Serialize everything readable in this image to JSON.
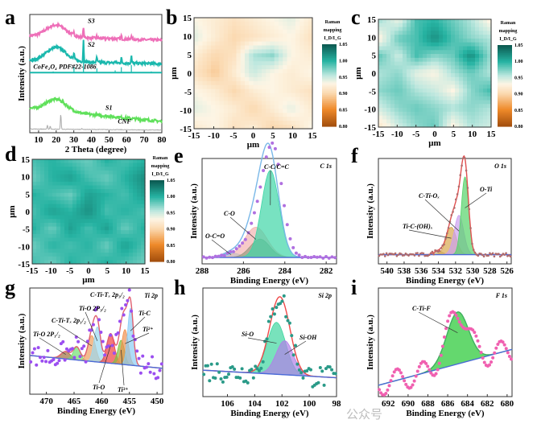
{
  "colorscale": {
    "stops": [
      [
        0.8,
        "#a5500e"
      ],
      [
        0.85,
        "#ef8a2a"
      ],
      [
        0.9,
        "#fbd9b0"
      ],
      [
        0.93,
        "#fdf5e4"
      ],
      [
        0.955,
        "#bfe8df"
      ],
      [
        1.0,
        "#26b3a2"
      ],
      [
        1.05,
        "#0c5b52"
      ]
    ],
    "title": [
      "Raman",
      "mapping",
      "I_D/I_G"
    ],
    "ticks": [
      "1.05",
      "1.00",
      "0.95",
      "0.90",
      "0.85",
      "0.80"
    ]
  },
  "watermark": "公众号",
  "chart_data": [
    {
      "panel": "a",
      "type": "line",
      "xlabel": "2 Theta (degree)",
      "ylabel": "Intensity (a.u.)",
      "xlim": [
        5,
        80
      ],
      "ylim": [
        0,
        11
      ],
      "xticks": [
        "10",
        "20",
        "30",
        "40",
        "50",
        "60",
        "70",
        "80"
      ],
      "series": [
        {
          "name": "S3",
          "color": "#ee6fb8",
          "baseline_end": 8.6,
          "tail": 0.4,
          "hump": 1.1,
          "peaks": [
            [
              30.1,
              0.3
            ],
            [
              35.5,
              1.0
            ],
            [
              43.1,
              0.2
            ],
            [
              57.0,
              0.3
            ],
            [
              62.7,
              0.4
            ]
          ]
        },
        {
          "name": "S2",
          "color": "#1ab8ad",
          "baseline_end": 6.4,
          "tail": 0.3,
          "hump": 1.3,
          "peaks": [
            [
              30.1,
              0.6
            ],
            [
              35.5,
              2.0
            ],
            [
              43.1,
              0.5
            ],
            [
              53.5,
              0.2
            ],
            [
              57.0,
              0.5
            ],
            [
              62.7,
              0.7
            ],
            [
              74.0,
              0.1
            ]
          ]
        },
        {
          "name": "CoFe₂O₄ PDF#22-1086",
          "color": "#1ab8ad",
          "reference": true,
          "baseline_end": 5.6,
          "peaks": [
            [
              18.3,
              0.1
            ],
            [
              30.1,
              0.5
            ],
            [
              35.5,
              1.1
            ],
            [
              43.1,
              0.4
            ],
            [
              53.5,
              0.2
            ],
            [
              57.0,
              0.5
            ],
            [
              62.7,
              0.7
            ],
            [
              74.0,
              0.1
            ]
          ]
        },
        {
          "name": "S1",
          "color": "#5fe05a",
          "baseline_end": 1.05,
          "tail": 1.2,
          "hump": 1.1,
          "peaks": []
        },
        {
          "name": "CNF",
          "color": "#aaaaaa",
          "baseline_end": 0.25,
          "tail": 0.1,
          "hump": 0.0,
          "peaks": [
            [
              15.0,
              0.35
            ],
            [
              16.6,
              0.3
            ],
            [
              22.6,
              1.5
            ],
            [
              34.5,
              0.1
            ]
          ]
        }
      ]
    },
    {
      "panel": "b",
      "type": "heatmap",
      "xlabel": "μm",
      "ylabel": "μm",
      "xlim": [
        -15,
        15
      ],
      "ylim": [
        -15,
        15
      ],
      "xticks": [
        "-15",
        "-10",
        "-5",
        "0",
        "5",
        "10",
        "15"
      ],
      "yticks": [
        "15",
        "10",
        "5",
        "0",
        "-5",
        "-10",
        "-15"
      ],
      "values": [
        [
          0.93,
          0.92,
          0.91,
          0.92,
          0.93,
          0.94,
          0.92
        ],
        [
          0.94,
          0.92,
          0.9,
          0.91,
          0.92,
          0.93,
          0.91
        ],
        [
          0.92,
          0.9,
          0.91,
          0.96,
          0.97,
          0.93,
          0.92
        ],
        [
          0.91,
          0.89,
          0.92,
          0.95,
          0.93,
          0.92,
          0.93
        ],
        [
          0.93,
          0.92,
          0.9,
          0.92,
          0.93,
          0.92,
          0.91
        ],
        [
          0.94,
          0.93,
          0.92,
          0.9,
          0.92,
          0.94,
          0.92
        ],
        [
          0.92,
          0.93,
          0.91,
          0.92,
          0.9,
          0.91,
          0.93
        ]
      ]
    },
    {
      "panel": "c",
      "type": "heatmap",
      "xlabel": "μm",
      "ylabel": "μm",
      "xlim": [
        -15,
        15
      ],
      "ylim": [
        -15,
        15
      ],
      "xticks": [
        "-15",
        "-10",
        "-5",
        "0",
        "5",
        "10",
        "15"
      ],
      "yticks": [
        "15",
        "10",
        "5",
        "0",
        "-5",
        "-10",
        "-15"
      ],
      "values": [
        [
          0.96,
          0.94,
          0.99,
          1.0,
          0.98,
          0.96,
          0.93
        ],
        [
          0.93,
          0.98,
          0.99,
          1.02,
          0.99,
          0.97,
          0.96
        ],
        [
          0.98,
          0.95,
          0.99,
          0.97,
          0.98,
          1.02,
          0.97
        ],
        [
          0.96,
          0.97,
          0.94,
          0.93,
          0.96,
          0.98,
          0.96
        ],
        [
          0.97,
          0.98,
          0.96,
          0.95,
          0.93,
          0.97,
          0.99
        ],
        [
          0.95,
          0.97,
          0.98,
          0.97,
          0.96,
          0.97,
          0.96
        ],
        [
          0.92,
          0.95,
          0.97,
          0.98,
          0.93,
          0.96,
          0.95
        ]
      ]
    },
    {
      "panel": "d",
      "type": "heatmap",
      "xlabel": "μm",
      "ylabel": "μm",
      "xlim": [
        -15,
        15
      ],
      "ylim": [
        -15,
        15
      ],
      "xticks": [
        "-15",
        "-10",
        "-5",
        "0",
        "5",
        "10",
        "15"
      ],
      "yticks": [
        "15",
        "10",
        "5",
        "0",
        "-5",
        "-10",
        "-15"
      ],
      "values": [
        [
          0.99,
          1.0,
          0.99,
          0.98,
          1.0,
          0.99,
          1.0
        ],
        [
          0.98,
          1.0,
          1.01,
          0.99,
          0.98,
          1.0,
          1.02
        ],
        [
          1.0,
          0.99,
          0.98,
          1.01,
          1.0,
          0.99,
          1.01
        ],
        [
          0.99,
          1.01,
          1.0,
          1.02,
          0.99,
          1.0,
          0.99
        ],
        [
          1.0,
          0.98,
          1.01,
          0.99,
          1.01,
          0.98,
          1.0
        ],
        [
          0.98,
          1.0,
          0.99,
          1.0,
          0.98,
          1.01,
          0.99
        ],
        [
          0.99,
          0.98,
          1.0,
          0.99,
          1.0,
          0.99,
          0.98
        ]
      ]
    },
    {
      "panel": "e",
      "type": "area",
      "title": "C 1s",
      "xlabel": "Binding Energy (eV)",
      "ylabel": "Intensity (a.u.)",
      "xlim": [
        288,
        281.5
      ],
      "ylim": [
        0,
        1.15
      ],
      "xticks": [
        "288",
        "286",
        "284",
        "282"
      ],
      "background": [
        0.07,
        0.07
      ],
      "point_color": "#b070e0",
      "point_shift": 0.2,
      "envelope_color": "#7ab8e8",
      "components": [
        {
          "name": "O-C=O",
          "center": 286.6,
          "fwhm": 1.0,
          "height": 0.05,
          "color": "#5fd3e6"
        },
        {
          "name": "C-O",
          "center": 285.4,
          "fwhm": 1.3,
          "height": 0.33,
          "color": "#f3b3b0"
        },
        {
          "name": "",
          "center": 285.2,
          "fwhm": 1.1,
          "height": 0.2,
          "color": "#9a9a80"
        },
        {
          "name": "C-C/C=C",
          "center": 284.7,
          "fwhm": 1.0,
          "height": 0.95,
          "color": "#3fd6a6"
        }
      ]
    },
    {
      "panel": "f",
      "type": "area",
      "title": "O 1s",
      "xlabel": "Binding Energy (eV)",
      "ylabel": "Intensity (a.u.)",
      "xlim": [
        541,
        525.5
      ],
      "ylim": [
        0,
        1.15
      ],
      "xticks": [
        "540",
        "538",
        "536",
        "534",
        "532",
        "530",
        "528",
        "526"
      ],
      "background": [
        0.1,
        0.1
      ],
      "point_color": "#b06a6a",
      "point_shift": 0,
      "envelope_color": "#e05050",
      "components": [
        {
          "name": "",
          "center": 534.0,
          "fwhm": 1.2,
          "height": 0.04,
          "color": "#c0b080"
        },
        {
          "name": "Ti-C-(OH)ₓ",
          "center": 532.5,
          "fwhm": 1.4,
          "height": 0.3,
          "color": "#d8a850"
        },
        {
          "name": "C-Ti-Oₓ",
          "center": 531.6,
          "fwhm": 1.3,
          "height": 0.43,
          "color": "#cc9ff0"
        },
        {
          "name": "O-Ti",
          "center": 530.9,
          "fwhm": 1.0,
          "height": 0.85,
          "color": "#55d36a"
        }
      ]
    },
    {
      "panel": "g",
      "type": "area",
      "title": "Ti 2p",
      "xlabel": "Binding Energy (eV)",
      "ylabel": "Intensity (a.u.)",
      "xlim": [
        473,
        449
      ],
      "ylim": [
        0,
        1.15
      ],
      "xticks": [
        "470",
        "465",
        "460",
        "455",
        "450"
      ],
      "background": [
        0.42,
        0.28
      ],
      "point_color": "#9b4ef0",
      "point_shift": 0,
      "envelope_color": "#e06070",
      "components": [
        {
          "name": "Ti-O 2P₁/₂",
          "center": 466.5,
          "fwhm": 2.0,
          "height": 0.08,
          "color": "#a07040"
        },
        {
          "name": "",
          "center": 464.5,
          "fwhm": 1.5,
          "height": 0.14,
          "color": "#70e070"
        },
        {
          "name": "C-Ti-Tₓ 2p₁/₂",
          "center": 461.8,
          "fwhm": 1.6,
          "height": 0.28,
          "color": "#f0a060"
        },
        {
          "name": "Ti-O 2P₃/₂",
          "center": 460.8,
          "fwhm": 1.4,
          "height": 0.38,
          "color": "#9ad8f0"
        },
        {
          "name": "Ti-O",
          "center": 458.4,
          "fwhm": 1.6,
          "height": 0.32,
          "color": "#f04040"
        },
        {
          "name": "Ti³⁺",
          "center": 456.5,
          "fwhm": 1.4,
          "height": 0.26,
          "color": "#80c040"
        },
        {
          "name": "Ti²⁺",
          "center": 455.8,
          "fwhm": 1.4,
          "height": 0.38,
          "color": "#f09050"
        },
        {
          "name": "Ti-C",
          "center": 454.8,
          "fwhm": 1.2,
          "height": 0.62,
          "color": "#8ccdf5"
        }
      ],
      "annotations": [
        "C-Ti-Tₓ 2p₃/₂"
      ]
    },
    {
      "panel": "h",
      "type": "area",
      "title": "Si 2p",
      "xlabel": "Binding Energy (eV)",
      "ylabel": "Intensity (a.u.)",
      "xlim": [
        107.8,
        98
      ],
      "ylim": [
        0,
        1.15
      ],
      "xticks": [
        "106",
        "104",
        "102",
        "100",
        "98"
      ],
      "background": [
        0.28,
        0.2
      ],
      "point_color": "#2a9a88",
      "point_shift": 0,
      "envelope_color": "#f04848",
      "components": [
        {
          "name": "Si-O",
          "center": 102.4,
          "fwhm": 1.6,
          "height": 0.55,
          "color": "#3fd6a0"
        },
        {
          "name": "Si-OH",
          "center": 101.8,
          "fwhm": 1.5,
          "height": 0.36,
          "color": "#b080e8"
        }
      ]
    },
    {
      "panel": "i",
      "type": "area",
      "title": "F 1s",
      "xlabel": "Binding Energy (eV)",
      "ylabel": "Intensity (a.u.)",
      "xlim": [
        693,
        679.5
      ],
      "ylim": [
        0,
        1.15
      ],
      "xticks": [
        "692",
        "690",
        "688",
        "686",
        "684",
        "682",
        "680"
      ],
      "background": [
        0.12,
        0.5
      ],
      "point_color": "#f060b0",
      "point_shift": 0,
      "envelope_color": "#40b060",
      "components": [
        {
          "name": "C-Ti-F",
          "center": 685.0,
          "fwhm": 2.6,
          "height": 0.55,
          "color": "#22c830"
        }
      ]
    }
  ]
}
